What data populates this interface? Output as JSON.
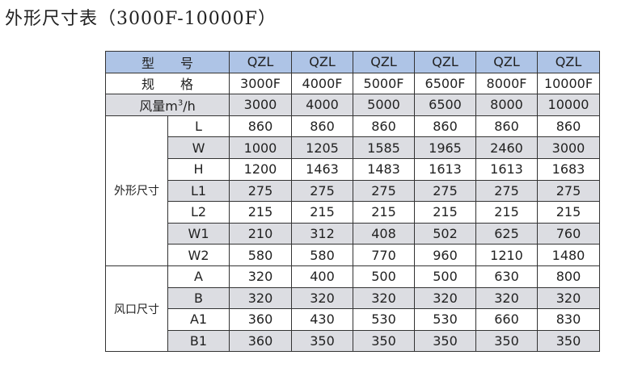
{
  "title": "外形尺寸表（3000F-10000F）",
  "table": {
    "model_label": "型　　号",
    "spec_label": "规　　格",
    "airflow_label": "风量m",
    "airflow_sup": "3",
    "airflow_unit": "/h",
    "models": [
      "QZL",
      "QZL",
      "QZL",
      "QZL",
      "QZL",
      "QZL"
    ],
    "specs": [
      "3000F",
      "4000F",
      "5000F",
      "6500F",
      "8000F",
      "10000F"
    ],
    "airflow": [
      "3000",
      "4000",
      "5000",
      "6500",
      "8000",
      "10000"
    ],
    "groups": [
      {
        "label": "外形尺寸",
        "rows": [
          {
            "name": "L",
            "values": [
              "860",
              "860",
              "860",
              "860",
              "860",
              "860"
            ]
          },
          {
            "name": "W",
            "values": [
              "1000",
              "1205",
              "1585",
              "1965",
              "2460",
              "3000"
            ]
          },
          {
            "name": "H",
            "values": [
              "1200",
              "1463",
              "1483",
              "1613",
              "1613",
              "1683"
            ]
          },
          {
            "name": "L1",
            "values": [
              "275",
              "275",
              "275",
              "275",
              "275",
              "275"
            ]
          },
          {
            "name": "L2",
            "values": [
              "215",
              "215",
              "215",
              "215",
              "215",
              "215"
            ]
          },
          {
            "name": "W1",
            "values": [
              "210",
              "312",
              "408",
              "502",
              "625",
              "760"
            ]
          },
          {
            "name": "W2",
            "values": [
              "580",
              "580",
              "770",
              "960",
              "1210",
              "1480"
            ]
          }
        ]
      },
      {
        "label": "风口尺寸",
        "rows": [
          {
            "name": "A",
            "values": [
              "320",
              "400",
              "500",
              "500",
              "630",
              "800"
            ]
          },
          {
            "name": "B",
            "values": [
              "320",
              "320",
              "320",
              "320",
              "320",
              "320"
            ]
          },
          {
            "name": "A1",
            "values": [
              "360",
              "430",
              "530",
              "530",
              "660",
              "830"
            ]
          },
          {
            "name": "B1",
            "values": [
              "360",
              "350",
              "350",
              "350",
              "350",
              "350"
            ]
          }
        ]
      }
    ],
    "colors": {
      "header": "#aec4e6",
      "shade": "#dcdde2"
    }
  }
}
